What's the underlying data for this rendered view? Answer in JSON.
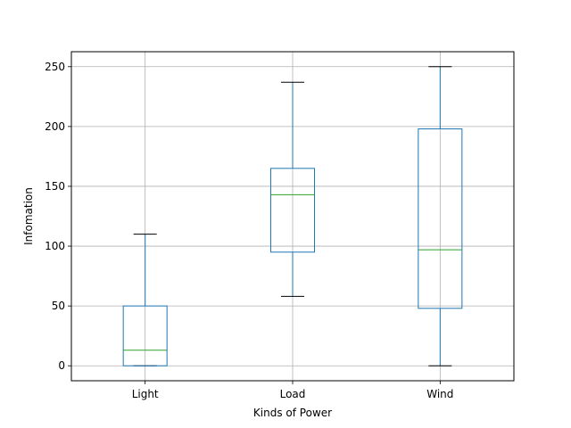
{
  "chart_data": {
    "type": "box",
    "xlabel": "Kinds of Power",
    "ylabel": "Infomation",
    "categories": [
      "Light",
      "Load",
      "Wind"
    ],
    "boxes": [
      {
        "name": "Light",
        "whisker_low": 0,
        "q1": 0,
        "median": 13,
        "q3": 50,
        "whisker_high": 110
      },
      {
        "name": "Load",
        "whisker_low": 58,
        "q1": 95,
        "median": 143,
        "q3": 165,
        "whisker_high": 237
      },
      {
        "name": "Wind",
        "whisker_low": 0,
        "q1": 48,
        "median": 97,
        "q3": 198,
        "whisker_high": 250
      }
    ],
    "yticks": [
      0,
      50,
      100,
      150,
      200,
      250
    ],
    "ylim": [
      -12.5,
      262.5
    ],
    "grid": true,
    "colors": {
      "box": "#1f77b4",
      "median": "#2ca02c",
      "cap": "#000000",
      "grid": "#b0b0b0"
    }
  }
}
